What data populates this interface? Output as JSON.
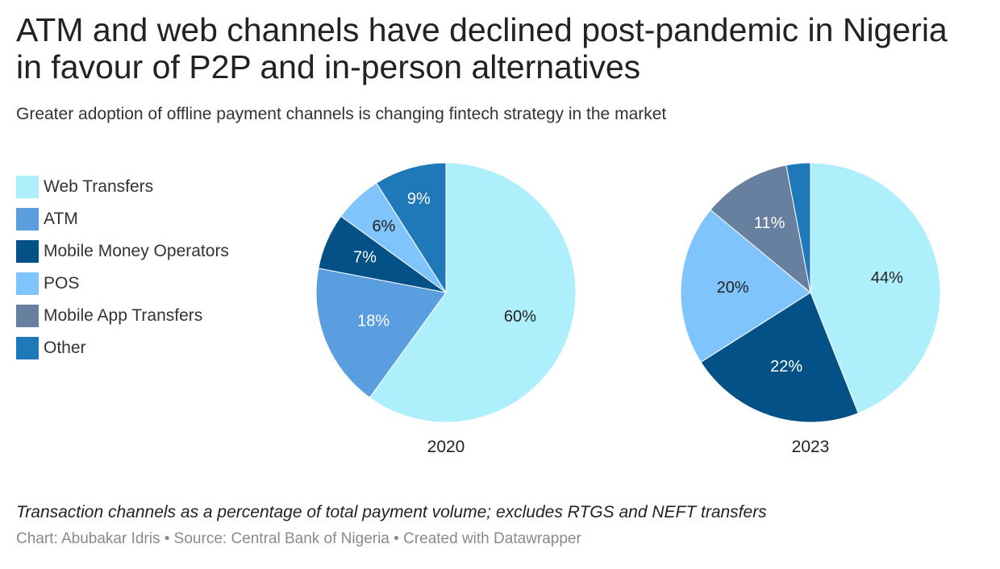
{
  "title": "ATM and web channels have declined post-pandemic in Nigeria in favour of P2P and in-person alternatives",
  "subtitle": "Greater adoption of offline payment channels is changing fintech strategy in the market",
  "legend": [
    {
      "label": "Web Transfers",
      "color": "#aeeffc"
    },
    {
      "label": "ATM",
      "color": "#5a9ee0"
    },
    {
      "label": "Mobile Money Operators",
      "color": "#045188"
    },
    {
      "label": "POS",
      "color": "#7fc4fd"
    },
    {
      "label": "Mobile App Transfers",
      "color": "#68809f"
    },
    {
      "label": "Other",
      "color": "#1f78b8"
    }
  ],
  "chart_data": [
    {
      "type": "pie",
      "label": "2020",
      "slices": [
        {
          "category": "Web Transfers",
          "value": 60,
          "label": "60%",
          "color": "#aeeffc",
          "text_color": "#222222"
        },
        {
          "category": "ATM",
          "value": 18,
          "label": "18%",
          "color": "#5a9ee0",
          "text_color": "#ffffff"
        },
        {
          "category": "Mobile Money Operators",
          "value": 7,
          "label": "7%",
          "color": "#045188",
          "text_color": "#ffffff"
        },
        {
          "category": "POS",
          "value": 6,
          "label": "6%",
          "color": "#7fc4fd",
          "text_color": "#222222"
        },
        {
          "category": "Other",
          "value": 9,
          "label": "9%",
          "color": "#1f78b8",
          "text_color": "#ffffff"
        }
      ]
    },
    {
      "type": "pie",
      "label": "2023",
      "slices": [
        {
          "category": "Web Transfers",
          "value": 44,
          "label": "44%",
          "color": "#aeeffc",
          "text_color": "#222222"
        },
        {
          "category": "Mobile Money Operators",
          "value": 22,
          "label": "22%",
          "color": "#045188",
          "text_color": "#ffffff"
        },
        {
          "category": "POS",
          "value": 20,
          "label": "20%",
          "color": "#7fc4fd",
          "text_color": "#222222"
        },
        {
          "category": "Mobile App Transfers",
          "value": 11,
          "label": "11%",
          "color": "#68809f",
          "text_color": "#ffffff"
        },
        {
          "category": "Other",
          "value": 3,
          "label": "",
          "color": "#1f78b8",
          "text_color": "#ffffff"
        }
      ]
    }
  ],
  "notes": "Transaction channels as a percentage of total payment volume; excludes RTGS and NEFT transfers",
  "credits": "Chart: Abubakar Idris • Source: Central Bank of Nigeria • Created with Datawrapper"
}
